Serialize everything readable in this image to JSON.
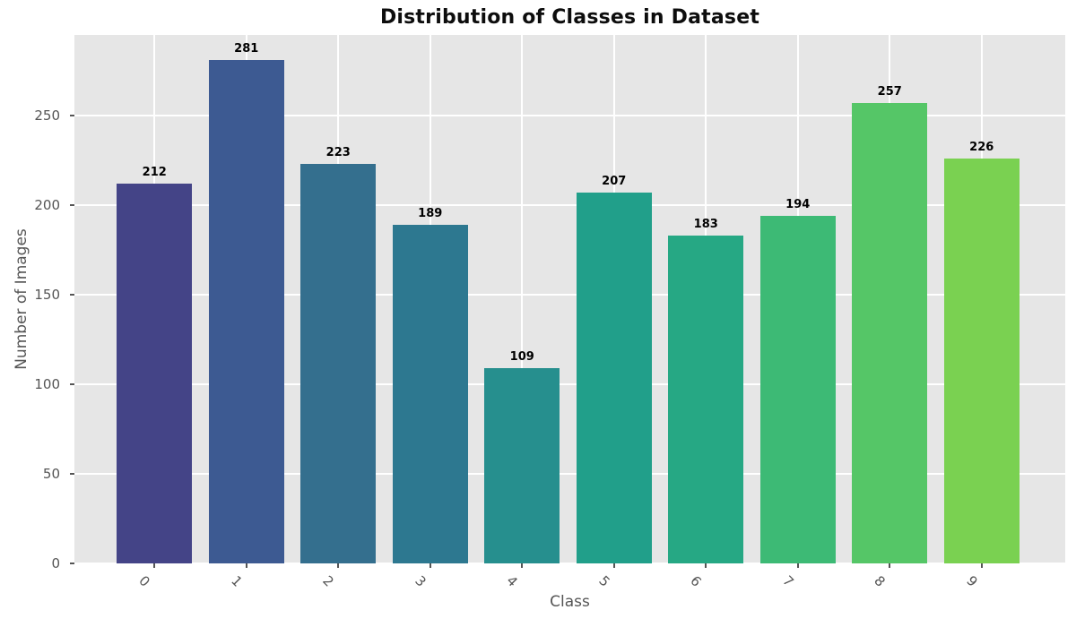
{
  "chart_data": {
    "type": "bar",
    "title": "Distribution of Classes in Dataset",
    "xlabel": "Class",
    "ylabel": "Number of Images",
    "categories": [
      "0",
      "1",
      "2",
      "3",
      "4",
      "5",
      "6",
      "7",
      "8",
      "9"
    ],
    "values": [
      212,
      281,
      223,
      189,
      109,
      207,
      183,
      194,
      257,
      226
    ],
    "value_labels_shown": true,
    "yticks": [
      0,
      50,
      100,
      150,
      200,
      250
    ],
    "ylim": [
      0,
      295
    ],
    "grid": true,
    "legend": "none",
    "x_tick_rotation_deg": 45,
    "bar_colors": [
      "#444487",
      "#3d5a92",
      "#346f8e",
      "#2d7890",
      "#268f8e",
      "#219f8a",
      "#26a884",
      "#3dba75",
      "#55c667",
      "#7ad151"
    ],
    "style": {
      "plot_background": "#e6e6e6",
      "figure_background": "#ffffff",
      "grid_color": "#ffffff",
      "tick_text_color": "#555555",
      "axis_label_color": "#555555",
      "title_color": "#0d0d0d",
      "value_label_color": "#000000"
    }
  }
}
